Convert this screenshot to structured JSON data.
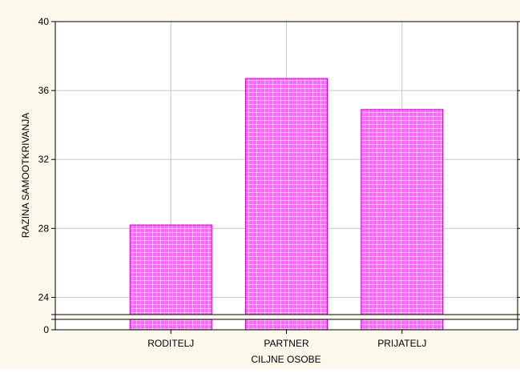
{
  "chart_data": {
    "type": "bar",
    "title": "",
    "xlabel": "CILJNE OSOBE",
    "ylabel": "RAZINA SAMOOTKRIVANJA",
    "categories": [
      "RODITELJ",
      "PARTNER",
      "PRIJATELJ"
    ],
    "values": [
      28.2,
      36.7,
      34.9
    ],
    "ylim": [
      23,
      40
    ],
    "axis_break": {
      "lower_label": "0",
      "lower_value": 0
    },
    "yticks": [
      24,
      28,
      32,
      36,
      40
    ],
    "ytick_labels": [
      "24",
      "28",
      "32",
      "36",
      "40"
    ],
    "grid": true,
    "legend": "none",
    "colors": {
      "background": "#fdf8ec",
      "plot_area": "#ffffff",
      "bar_fill": "#ff66ff",
      "bar_grid": "#ffffff",
      "bar_stroke": "#cc00cc",
      "grid_line": "#c8c8c8"
    }
  }
}
